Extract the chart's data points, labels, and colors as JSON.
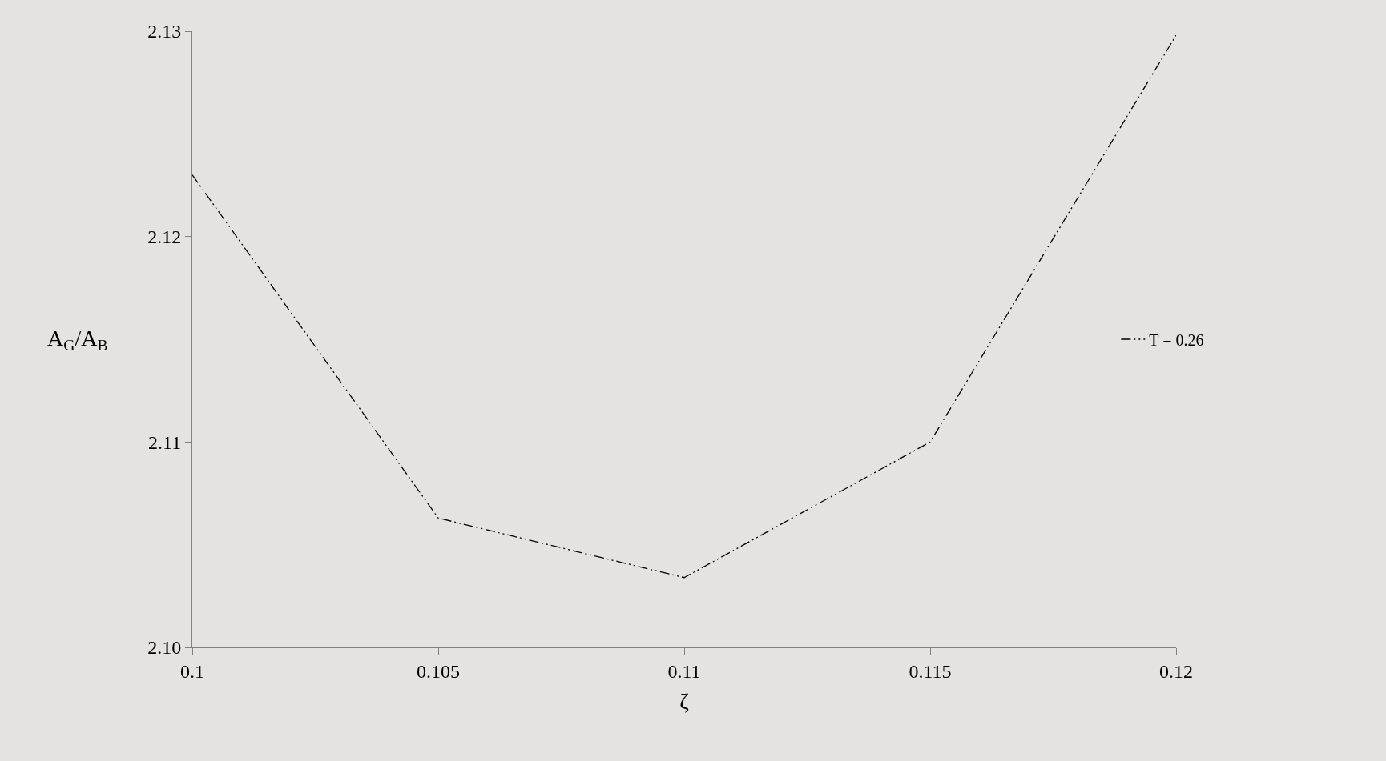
{
  "chart_data": {
    "type": "line",
    "xlabel": "ζ",
    "ylabel": "A$_{G}$/A$_{B}$",
    "x": [
      0.1,
      0.105,
      0.11,
      0.115,
      0.12
    ],
    "series": [
      {
        "name": "T = 0.26",
        "color": "#000000",
        "values": [
          2.123,
          2.1063,
          2.1034,
          2.11,
          2.1298
        ]
      }
    ],
    "xlim": [
      0.1,
      0.12
    ],
    "xticks": [
      0.1,
      0.105,
      0.11,
      0.115,
      0.12
    ],
    "ylim": [
      2.1,
      2.13
    ],
    "yticks": [
      {
        "value": 2.1,
        "label": "2.10"
      },
      2.11,
      2.12,
      2.13
    ],
    "grid": false,
    "legend": "right",
    "marker": "none",
    "line_style": "dashed"
  }
}
